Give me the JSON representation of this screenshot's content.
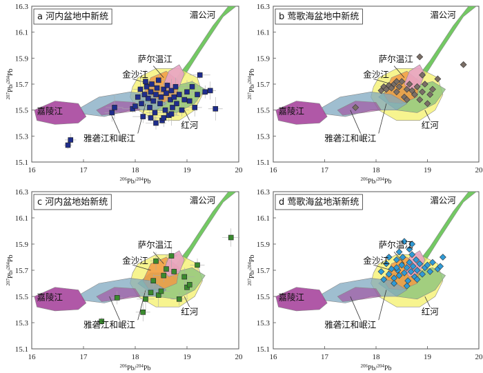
{
  "chart_data": [
    {
      "type": "scatter",
      "title": "a 河内盆地中新统",
      "xlabel": "206Pb/204Pb",
      "ylabel": "207Pb/204Pb",
      "xlim": [
        16,
        20
      ],
      "ylim": [
        15.1,
        16.3
      ],
      "xticks": [
        "16",
        "17",
        "18",
        "19",
        "20"
      ],
      "yticks": [
        "15.1",
        "15.3",
        "15.5",
        "15.7",
        "15.9",
        "16.1",
        "16.3"
      ],
      "region_labels": [
        "湄公河",
        "萨尔温江",
        "金沙江",
        "嘉陵江",
        "红河",
        "雅砻江和岷江"
      ],
      "marker": "square",
      "marker_color": "#1f2d8c",
      "points": [
        {
          "x": 16.7,
          "y": 15.23
        },
        {
          "x": 16.75,
          "y": 15.27
        },
        {
          "x": 17.55,
          "y": 15.48
        },
        {
          "x": 17.6,
          "y": 15.52
        },
        {
          "x": 17.95,
          "y": 15.51
        },
        {
          "x": 18.0,
          "y": 15.53
        },
        {
          "x": 18.05,
          "y": 15.6
        },
        {
          "x": 18.1,
          "y": 15.66
        },
        {
          "x": 18.12,
          "y": 15.55
        },
        {
          "x": 18.15,
          "y": 15.45
        },
        {
          "x": 18.18,
          "y": 15.62
        },
        {
          "x": 18.2,
          "y": 15.72
        },
        {
          "x": 18.22,
          "y": 15.68
        },
        {
          "x": 18.25,
          "y": 15.59
        },
        {
          "x": 18.28,
          "y": 15.52
        },
        {
          "x": 18.3,
          "y": 15.64
        },
        {
          "x": 18.32,
          "y": 15.7
        },
        {
          "x": 18.35,
          "y": 15.57
        },
        {
          "x": 18.38,
          "y": 15.48
        },
        {
          "x": 18.4,
          "y": 15.62
        },
        {
          "x": 18.42,
          "y": 15.67
        },
        {
          "x": 18.45,
          "y": 15.73
        },
        {
          "x": 18.48,
          "y": 15.55
        },
        {
          "x": 18.5,
          "y": 15.6
        },
        {
          "x": 18.52,
          "y": 15.42
        },
        {
          "x": 18.55,
          "y": 15.66
        },
        {
          "x": 18.58,
          "y": 15.5
        },
        {
          "x": 18.6,
          "y": 15.63
        },
        {
          "x": 18.62,
          "y": 15.69
        },
        {
          "x": 18.65,
          "y": 15.46
        },
        {
          "x": 18.68,
          "y": 15.58
        },
        {
          "x": 18.7,
          "y": 15.65
        },
        {
          "x": 18.72,
          "y": 15.52
        },
        {
          "x": 18.75,
          "y": 15.6
        },
        {
          "x": 18.78,
          "y": 15.68
        },
        {
          "x": 18.8,
          "y": 15.55
        },
        {
          "x": 18.85,
          "y": 15.62
        },
        {
          "x": 18.9,
          "y": 15.5
        },
        {
          "x": 18.95,
          "y": 15.58
        },
        {
          "x": 19.0,
          "y": 15.64
        },
        {
          "x": 19.05,
          "y": 15.57
        },
        {
          "x": 19.1,
          "y": 15.68
        },
        {
          "x": 19.15,
          "y": 15.52
        },
        {
          "x": 19.2,
          "y": 15.62
        },
        {
          "x": 19.25,
          "y": 15.77
        },
        {
          "x": 19.35,
          "y": 15.64
        },
        {
          "x": 19.45,
          "y": 15.65
        },
        {
          "x": 19.55,
          "y": 15.51
        },
        {
          "x": 18.3,
          "y": 15.44
        },
        {
          "x": 18.4,
          "y": 15.4
        },
        {
          "x": 18.55,
          "y": 15.44
        },
        {
          "x": 18.7,
          "y": 15.47
        }
      ]
    },
    {
      "type": "scatter",
      "title": "b 莺歌海盆地中新统",
      "xlabel": "206Pb/204Pb",
      "ylabel": "207Pb/204Pb",
      "xlim": [
        16,
        20
      ],
      "ylim": [
        15.1,
        16.3
      ],
      "xticks": [
        "16",
        "17",
        "18",
        "19",
        "20"
      ],
      "yticks": [
        "15.1",
        "15.3",
        "15.5",
        "15.7",
        "15.9",
        "16.1",
        "16.3"
      ],
      "region_labels": [
        "湄公河",
        "萨尔温江",
        "金沙江",
        "嘉陵江",
        "红河",
        "雅砻江和岷江"
      ],
      "marker": "diamond",
      "marker_color": "#7a6e66",
      "points": [
        {
          "x": 17.6,
          "y": 15.52
        },
        {
          "x": 18.1,
          "y": 15.65
        },
        {
          "x": 18.15,
          "y": 15.68
        },
        {
          "x": 18.2,
          "y": 15.66
        },
        {
          "x": 18.25,
          "y": 15.69
        },
        {
          "x": 18.3,
          "y": 15.67
        },
        {
          "x": 18.35,
          "y": 15.7
        },
        {
          "x": 18.4,
          "y": 15.64
        },
        {
          "x": 18.45,
          "y": 15.68
        },
        {
          "x": 18.5,
          "y": 15.72
        },
        {
          "x": 18.55,
          "y": 15.6
        },
        {
          "x": 18.6,
          "y": 15.66
        },
        {
          "x": 18.65,
          "y": 15.7
        },
        {
          "x": 18.7,
          "y": 15.65
        },
        {
          "x": 18.75,
          "y": 15.62
        },
        {
          "x": 18.8,
          "y": 15.68
        },
        {
          "x": 18.85,
          "y": 15.58
        },
        {
          "x": 18.9,
          "y": 15.64
        },
        {
          "x": 18.95,
          "y": 15.7
        },
        {
          "x": 19.0,
          "y": 15.55
        },
        {
          "x": 19.05,
          "y": 15.62
        },
        {
          "x": 19.1,
          "y": 15.66
        },
        {
          "x": 19.2,
          "y": 15.74
        },
        {
          "x": 18.85,
          "y": 15.91
        },
        {
          "x": 19.7,
          "y": 15.85
        },
        {
          "x": 18.6,
          "y": 15.58
        },
        {
          "x": 18.4,
          "y": 15.72
        },
        {
          "x": 18.9,
          "y": 15.77
        }
      ]
    },
    {
      "type": "scatter",
      "title": "c 河内盆地始新统",
      "xlabel": "206Pb/204Pb",
      "ylabel": "207Pb/204Pb",
      "xlim": [
        16,
        20
      ],
      "ylim": [
        15.1,
        16.3
      ],
      "xticks": [
        "16",
        "17",
        "18",
        "19",
        "20"
      ],
      "yticks": [
        "15.1",
        "15.3",
        "15.5",
        "15.7",
        "15.9",
        "16.1",
        "16.3"
      ],
      "region_labels": [
        "湄公河",
        "萨尔温江",
        "金沙江",
        "嘉陵江",
        "红河",
        "雅砻江和岷江"
      ],
      "marker": "square",
      "marker_color": "#3a8a2e",
      "points": [
        {
          "x": 17.35,
          "y": 15.31
        },
        {
          "x": 17.65,
          "y": 15.49
        },
        {
          "x": 18.15,
          "y": 15.38
        },
        {
          "x": 18.2,
          "y": 15.48
        },
        {
          "x": 18.3,
          "y": 15.53
        },
        {
          "x": 18.35,
          "y": 15.62
        },
        {
          "x": 18.4,
          "y": 15.77
        },
        {
          "x": 18.45,
          "y": 15.51
        },
        {
          "x": 18.5,
          "y": 15.54
        },
        {
          "x": 18.55,
          "y": 15.66
        },
        {
          "x": 18.6,
          "y": 15.71
        },
        {
          "x": 18.7,
          "y": 15.81
        },
        {
          "x": 18.75,
          "y": 15.69
        },
        {
          "x": 18.85,
          "y": 15.48
        },
        {
          "x": 18.95,
          "y": 15.65
        },
        {
          "x": 19.0,
          "y": 15.57
        },
        {
          "x": 19.05,
          "y": 15.59
        },
        {
          "x": 19.2,
          "y": 15.74
        },
        {
          "x": 19.85,
          "y": 15.95
        }
      ]
    },
    {
      "type": "scatter",
      "title": "d 莺歌海盆地渐新统",
      "xlabel": "206Pb/204Pb",
      "ylabel": "207Pb/204Pb",
      "xlim": [
        16,
        20
      ],
      "ylim": [
        15.1,
        16.3
      ],
      "xticks": [
        "16",
        "17",
        "18",
        "19",
        "20"
      ],
      "yticks": [
        "15.1",
        "15.3",
        "15.5",
        "15.7",
        "15.9",
        "16.1",
        "16.3"
      ],
      "region_labels": [
        "湄公河",
        "萨尔温江",
        "金沙江",
        "嘉陵江",
        "红河",
        "雅砻江和岷江"
      ],
      "marker": "diamond",
      "marker_color": "#2f9ad6",
      "points": [
        {
          "x": 18.1,
          "y": 15.69
        },
        {
          "x": 18.15,
          "y": 15.63
        },
        {
          "x": 18.2,
          "y": 15.75
        },
        {
          "x": 18.25,
          "y": 15.67
        },
        {
          "x": 18.3,
          "y": 15.71
        },
        {
          "x": 18.35,
          "y": 15.64
        },
        {
          "x": 18.4,
          "y": 15.78
        },
        {
          "x": 18.42,
          "y": 15.7
        },
        {
          "x": 18.45,
          "y": 15.66
        },
        {
          "x": 18.5,
          "y": 15.74
        },
        {
          "x": 18.52,
          "y": 15.8
        },
        {
          "x": 18.55,
          "y": 15.68
        },
        {
          "x": 18.6,
          "y": 15.72
        },
        {
          "x": 18.62,
          "y": 15.62
        },
        {
          "x": 18.65,
          "y": 15.76
        },
        {
          "x": 18.68,
          "y": 15.69
        },
        {
          "x": 18.7,
          "y": 15.82
        },
        {
          "x": 18.72,
          "y": 15.73
        },
        {
          "x": 18.75,
          "y": 15.65
        },
        {
          "x": 18.78,
          "y": 15.78
        },
        {
          "x": 18.8,
          "y": 15.7
        },
        {
          "x": 18.85,
          "y": 15.75
        },
        {
          "x": 18.9,
          "y": 15.67
        },
        {
          "x": 18.95,
          "y": 15.72
        },
        {
          "x": 19.0,
          "y": 15.74
        },
        {
          "x": 19.05,
          "y": 15.69
        },
        {
          "x": 19.1,
          "y": 15.76
        },
        {
          "x": 19.2,
          "y": 15.71
        },
        {
          "x": 19.3,
          "y": 15.8
        },
        {
          "x": 19.25,
          "y": 15.73
        },
        {
          "x": 18.55,
          "y": 15.92
        },
        {
          "x": 18.65,
          "y": 15.86
        },
        {
          "x": 18.35,
          "y": 15.6
        },
        {
          "x": 18.45,
          "y": 15.84
        },
        {
          "x": 18.8,
          "y": 15.63
        },
        {
          "x": 18.6,
          "y": 15.58
        },
        {
          "x": 18.4,
          "y": 15.72
        },
        {
          "x": 18.7,
          "y": 15.9
        },
        {
          "x": 18.25,
          "y": 15.8
        }
      ]
    }
  ],
  "colors": {
    "mekong": "#5bbf48",
    "yellow_field": "#f4f06a",
    "jinsha": "#f19a45",
    "salween": "#e8a3c4",
    "jialing": "#a23b98",
    "yalong": "#7fa8c0",
    "honghe": "#8cc47a"
  }
}
